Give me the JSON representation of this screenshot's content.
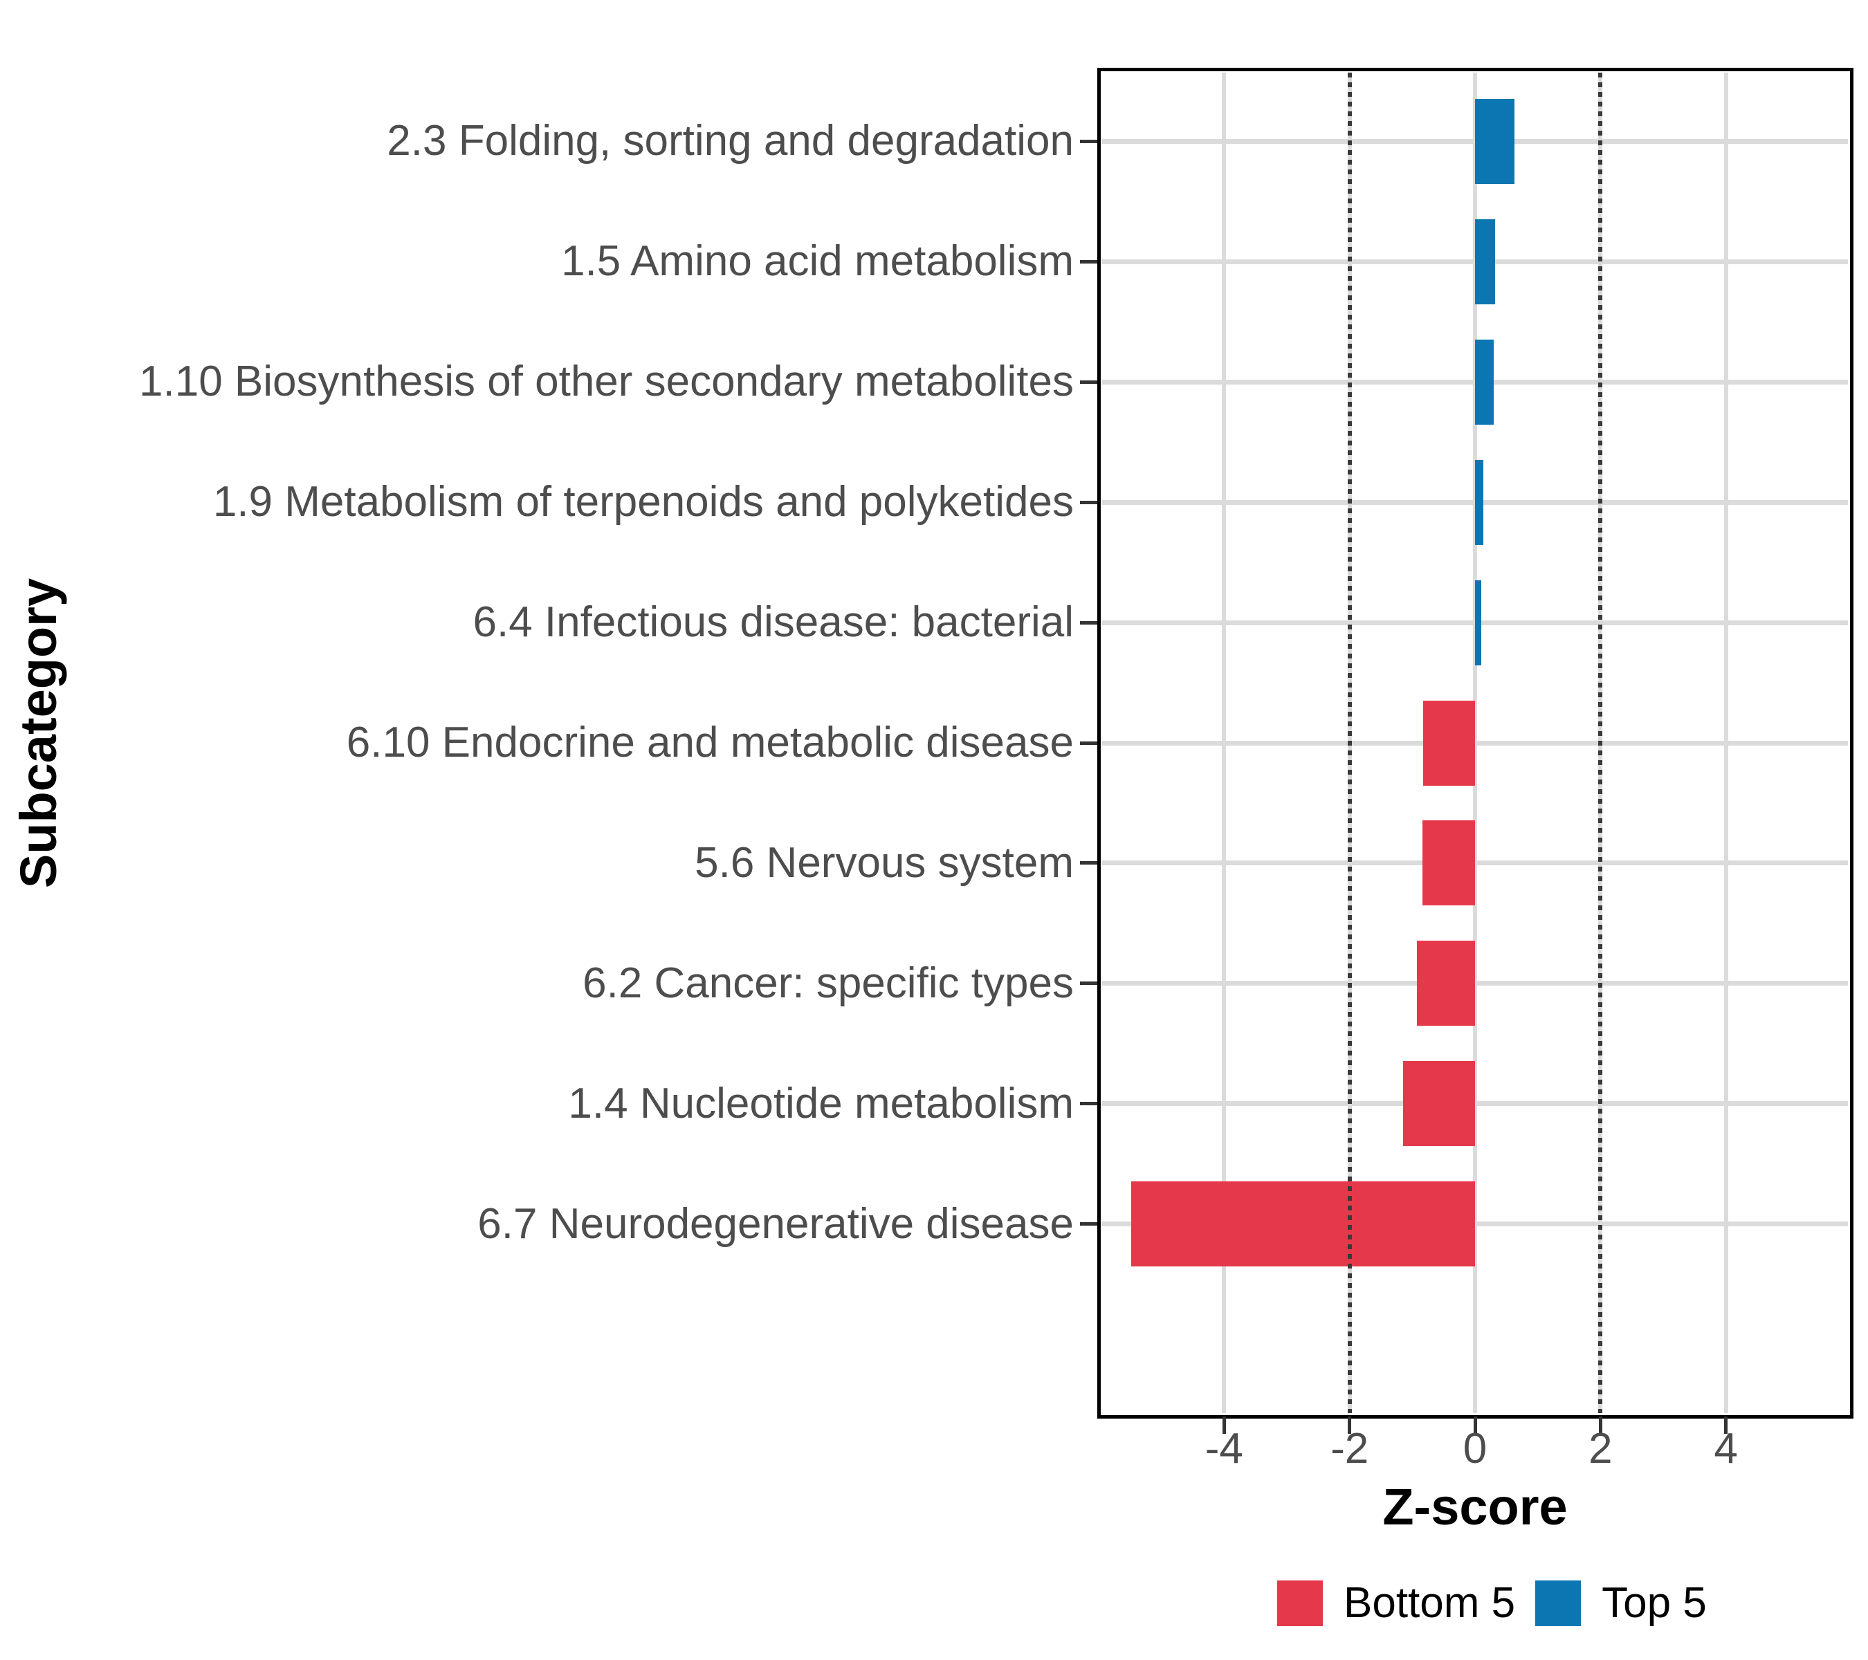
{
  "chart_data": {
    "type": "bar",
    "orientation": "horizontal",
    "xlabel": "Z-score",
    "ylabel": "Subcategory",
    "xlim": [
      -6,
      6
    ],
    "xticks": [
      -4,
      -2,
      0,
      2,
      4
    ],
    "xtick_labels": [
      "-4",
      "-2",
      "0",
      "2",
      "4"
    ],
    "grid": true,
    "reference_lines": [
      -2,
      2
    ],
    "categories": [
      "2.3 Folding, sorting and degradation",
      "1.5 Amino acid metabolism",
      "1.10 Biosynthesis of other secondary metabolites",
      "1.9 Metabolism of terpenoids and polyketides",
      "6.4 Infectious disease: bacterial",
      "6.10 Endocrine and metabolic disease",
      "5.6 Nervous system",
      "6.2 Cancer: specific types",
      "1.4 Nucleotide metabolism",
      "6.7 Neurodegenerative disease"
    ],
    "values": [
      0.63,
      0.32,
      0.3,
      0.13,
      0.1,
      -0.83,
      -0.84,
      -0.93,
      -1.15,
      -5.48
    ],
    "groups": [
      "Top 5",
      "Top 5",
      "Top 5",
      "Top 5",
      "Top 5",
      "Bottom 5",
      "Bottom 5",
      "Bottom 5",
      "Bottom 5",
      "Bottom 5"
    ],
    "legend": {
      "position": "bottom-right",
      "entries": [
        {
          "label": "Bottom 5",
          "color": "#E5394B"
        },
        {
          "label": "Top 5",
          "color": "#0B76B2"
        }
      ]
    }
  },
  "colors": {
    "bar_negative": "#E5394B",
    "bar_positive": "#0B76B2",
    "gridline": "#DBDBDB",
    "reference_line": "#3A3A3A",
    "tick_text": "#4D4D4D",
    "axis_title_text": "#000000",
    "panel_border": "#000000",
    "background": "#FFFFFF"
  }
}
